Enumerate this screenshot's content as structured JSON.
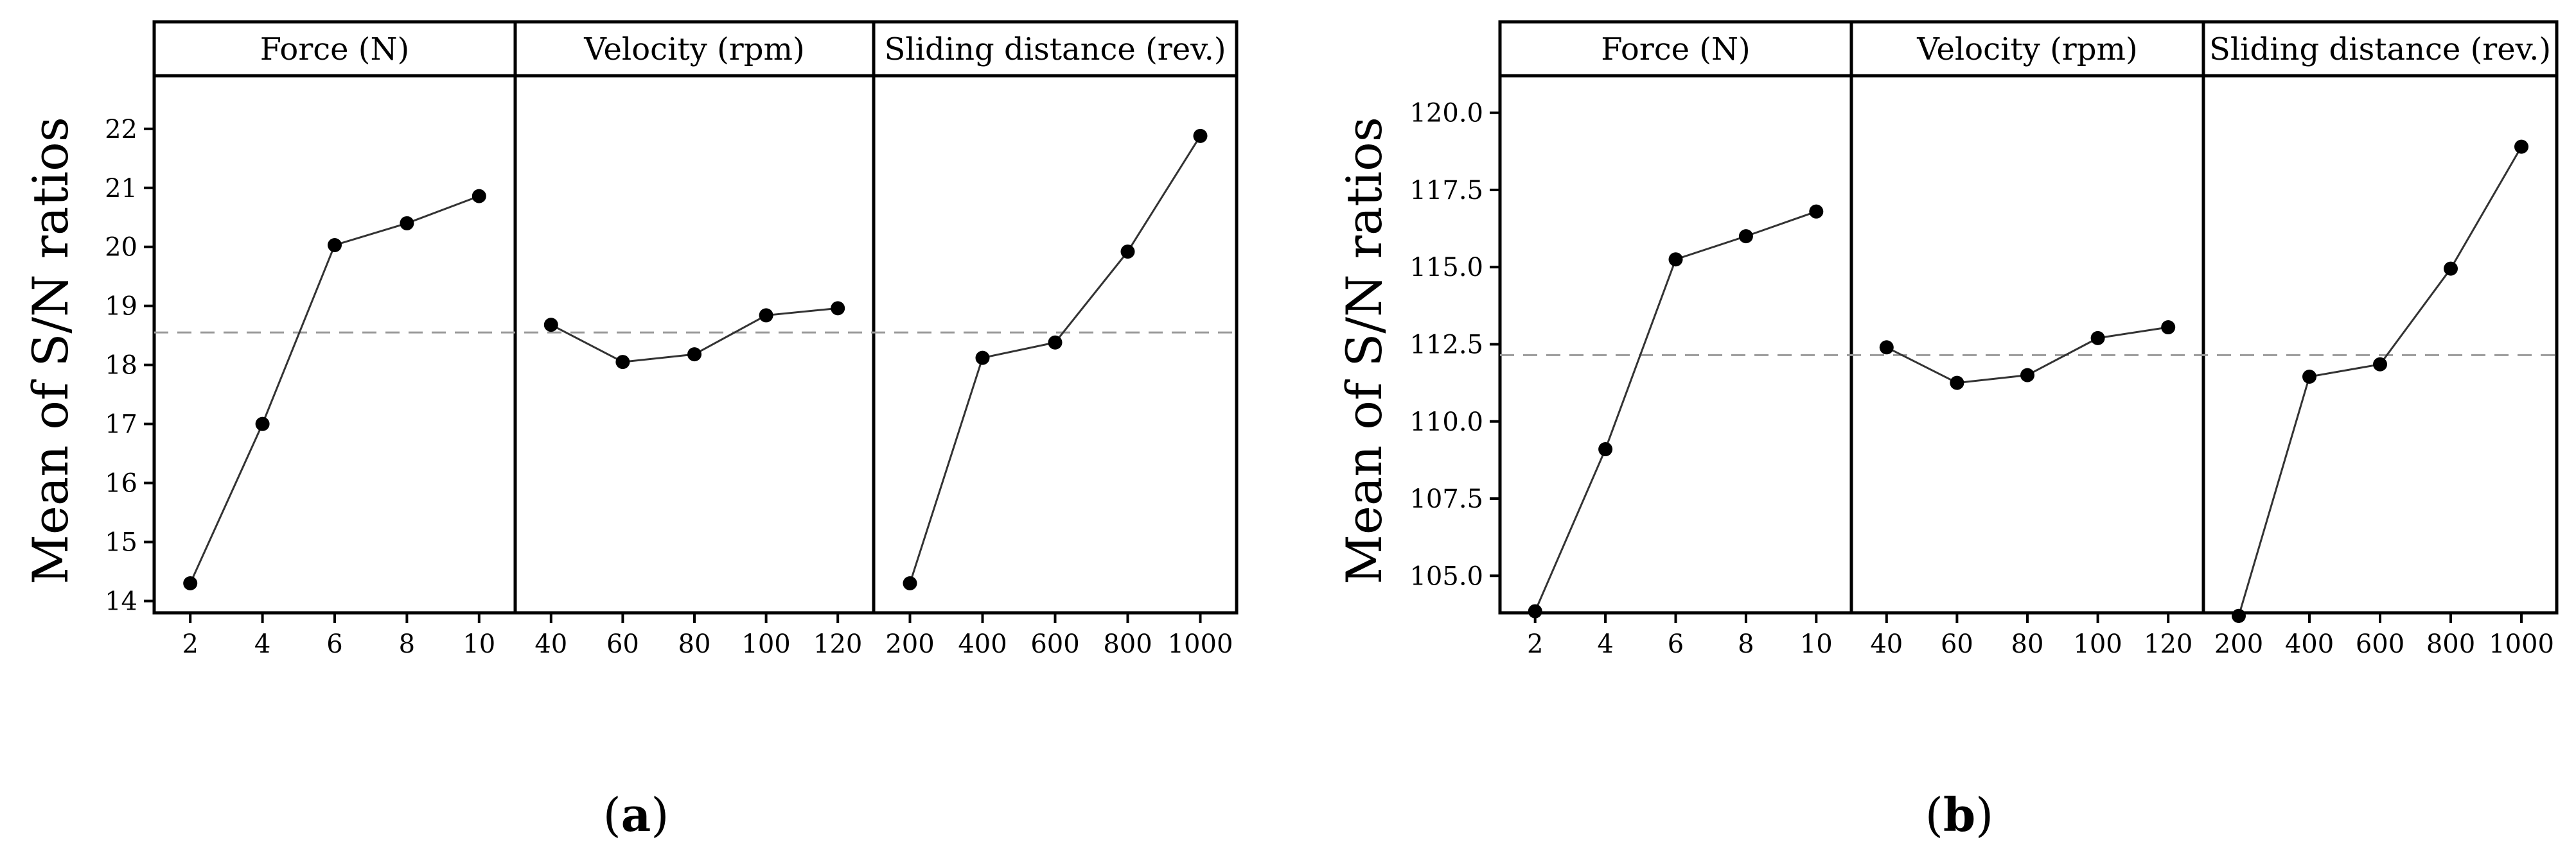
{
  "chart_data": [
    {
      "type": "line",
      "panel_label": "(a)",
      "ylabel": "Mean of S/N ratios",
      "ylim": [
        13.8,
        22.9
      ],
      "yticks": [
        "14",
        "15",
        "16",
        "17",
        "18",
        "19",
        "20",
        "21",
        "22"
      ],
      "reference_line": 18.55,
      "grid": false,
      "facets": [
        {
          "title": "Force (N)",
          "x": [
            "2",
            "4",
            "6",
            "8",
            "10"
          ],
          "values": [
            14.3,
            17.0,
            20.03,
            20.4,
            20.86
          ]
        },
        {
          "title": "Velocity (rpm)",
          "x": [
            "40",
            "60",
            "80",
            "100",
            "120"
          ],
          "values": [
            18.68,
            18.05,
            18.18,
            18.84,
            18.96
          ]
        },
        {
          "title": "Sliding distance (rev.)",
          "x": [
            "200",
            "400",
            "600",
            "800",
            "1000"
          ],
          "values": [
            14.3,
            18.12,
            18.38,
            19.92,
            21.88
          ]
        }
      ]
    },
    {
      "type": "line",
      "panel_label": "(b)",
      "ylabel": "Mean of S/N ratios",
      "ylim": [
        103.8,
        121.2
      ],
      "yticks": [
        "105.0",
        "107.5",
        "110.0",
        "112.5",
        "115.0",
        "117.5",
        "120.0"
      ],
      "reference_line": 112.15,
      "grid": false,
      "facets": [
        {
          "title": "Force (N)",
          "x": [
            "2",
            "4",
            "6",
            "8",
            "10"
          ],
          "values": [
            103.85,
            109.1,
            115.25,
            116.0,
            116.8
          ]
        },
        {
          "title": "Velocity (rpm)",
          "x": [
            "40",
            "60",
            "80",
            "100",
            "120"
          ],
          "values": [
            112.4,
            111.25,
            111.5,
            112.7,
            113.05
          ]
        },
        {
          "title": "Sliding distance (rev.)",
          "x": [
            "200",
            "400",
            "600",
            "800",
            "1000"
          ],
          "values": [
            103.7,
            111.45,
            111.85,
            114.95,
            118.9
          ]
        }
      ]
    }
  ]
}
